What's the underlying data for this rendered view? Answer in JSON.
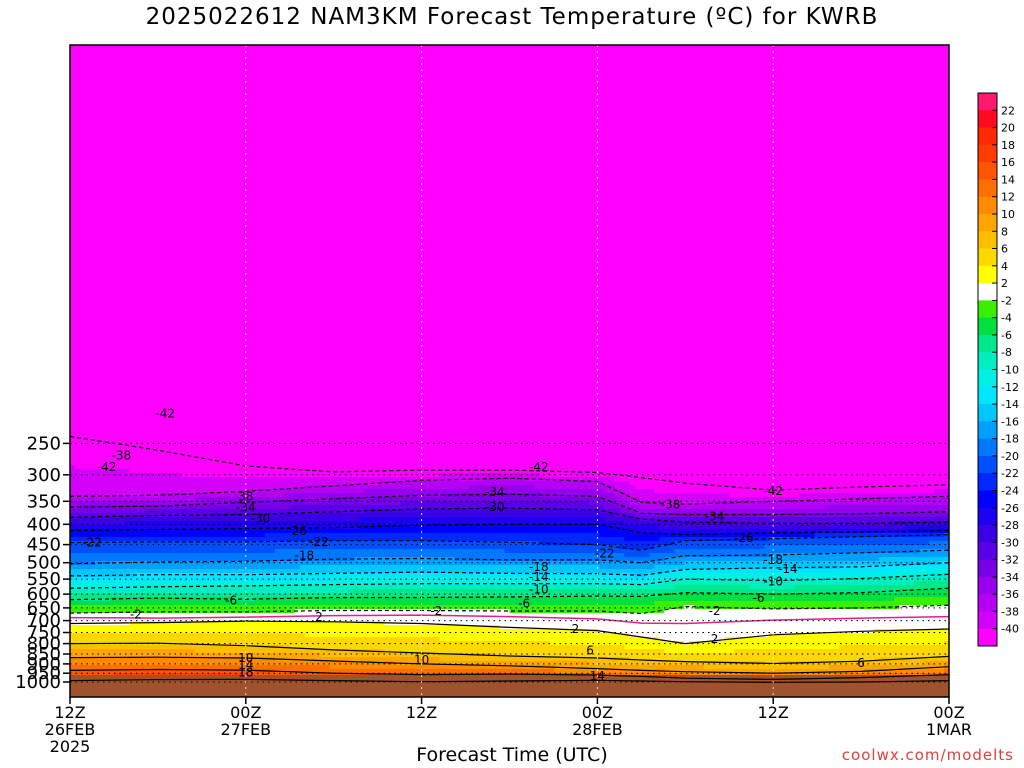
{
  "page": {
    "title": "2025022612 NAM3KM Forecast Temperature (ºC) for KWRB",
    "xlabel": "Forecast Time (UTC)",
    "credit": "coolwx.com/modelts"
  },
  "chart_data": {
    "type": "heatmap",
    "title": "2025022612 NAM3KM Forecast Temperature (ºC) for KWRB",
    "xlabel": "Forecast Time (UTC)",
    "ylabel": "",
    "x_ticks": [
      {
        "hour": 0,
        "lines": [
          "12Z",
          "26FEB",
          "2025"
        ]
      },
      {
        "hour": 12,
        "lines": [
          "00Z",
          "27FEB"
        ]
      },
      {
        "hour": 24,
        "lines": [
          "12Z"
        ]
      },
      {
        "hour": 36,
        "lines": [
          "00Z",
          "28FEB"
        ]
      },
      {
        "hour": 48,
        "lines": [
          "12Z"
        ]
      },
      {
        "hour": 60,
        "lines": [
          "00Z",
          "1MAR"
        ]
      }
    ],
    "xlim_hours": [
      0,
      60
    ],
    "y_ticks_hpa": [
      250,
      300,
      350,
      400,
      450,
      500,
      550,
      600,
      650,
      700,
      750,
      800,
      850,
      900,
      950,
      1000
    ],
    "ylim_hpa": [
      200,
      1050
    ],
    "y_scale": "log-pressure",
    "grid": true,
    "surface_fill_color": "#a0522d",
    "colorbar": {
      "ticks": [
        22,
        20,
        18,
        16,
        14,
        12,
        10,
        8,
        6,
        4,
        2,
        -2,
        -4,
        -6,
        -8,
        -10,
        -12,
        -14,
        -16,
        -18,
        -20,
        -22,
        -24,
        -26,
        -28,
        -30,
        -32,
        -34,
        -36,
        -38,
        -40
      ],
      "bands": [
        {
          "from": 22,
          "to": 24,
          "color": "#ff1a6e"
        },
        {
          "from": 20,
          "to": 22,
          "color": "#ff0a1e"
        },
        {
          "from": 18,
          "to": 20,
          "color": "#ff2a00"
        },
        {
          "from": 16,
          "to": 18,
          "color": "#ff3c00"
        },
        {
          "from": 14,
          "to": 16,
          "color": "#ff5500"
        },
        {
          "from": 12,
          "to": 14,
          "color": "#ff6e00"
        },
        {
          "from": 10,
          "to": 12,
          "color": "#ff8c00"
        },
        {
          "from": 8,
          "to": 10,
          "color": "#ffa500"
        },
        {
          "from": 6,
          "to": 8,
          "color": "#ffbf00"
        },
        {
          "from": 4,
          "to": 6,
          "color": "#ffd800"
        },
        {
          "from": 2,
          "to": 4,
          "color": "#ffff00"
        },
        {
          "from": -2,
          "to": 2,
          "color": "#ffffff"
        },
        {
          "from": -4,
          "to": -2,
          "color": "#38f000"
        },
        {
          "from": -6,
          "to": -4,
          "color": "#00e040"
        },
        {
          "from": -8,
          "to": -6,
          "color": "#00e88c"
        },
        {
          "from": -10,
          "to": -8,
          "color": "#00eec0"
        },
        {
          "from": -12,
          "to": -10,
          "color": "#00f0e6"
        },
        {
          "from": -14,
          "to": -12,
          "color": "#00e6ff"
        },
        {
          "from": -16,
          "to": -14,
          "color": "#00c8ff"
        },
        {
          "from": -18,
          "to": -16,
          "color": "#00a0ff"
        },
        {
          "from": -20,
          "to": -18,
          "color": "#0078ff"
        },
        {
          "from": -22,
          "to": -20,
          "color": "#0050ff"
        },
        {
          "from": -24,
          "to": -22,
          "color": "#0028ff"
        },
        {
          "from": -26,
          "to": -24,
          "color": "#0000ff"
        },
        {
          "from": -28,
          "to": -26,
          "color": "#1e00f0"
        },
        {
          "from": -30,
          "to": -28,
          "color": "#3c00e6"
        },
        {
          "from": -32,
          "to": -30,
          "color": "#5a00e6"
        },
        {
          "from": -34,
          "to": -32,
          "color": "#7800e6"
        },
        {
          "from": -36,
          "to": -34,
          "color": "#9600ee"
        },
        {
          "from": -38,
          "to": -36,
          "color": "#b400f5"
        },
        {
          "from": -40,
          "to": -38,
          "color": "#d200fa"
        },
        {
          "from": -42,
          "to": -40,
          "color": "#ff00ff"
        }
      ]
    },
    "profile_control_times_hours": [
      0,
      6,
      12,
      18,
      24,
      30,
      36,
      39,
      42,
      48,
      54,
      60
    ],
    "isotherm_levels_hpa": [
      {
        "temp": 18,
        "p": [
          992,
          986,
          985,
          992,
          998,
          994,
          990,
          994,
          998,
          1002,
          1000,
          992
        ]
      },
      {
        "temp": 14,
        "p": [
          935,
          930,
          934,
          950,
          958,
          955,
          960,
          968,
          978,
          985,
          975,
          958
        ]
      },
      {
        "temp": 10,
        "p": [
          868,
          866,
          870,
          885,
          900,
          910,
          925,
          935,
          942,
          950,
          940,
          915
        ]
      },
      {
        "temp": 6,
        "p": [
          800,
          798,
          810,
          830,
          845,
          860,
          870,
          880,
          888,
          898,
          886,
          862
        ]
      },
      {
        "temp": 2,
        "p": [
          712,
          708,
          702,
          705,
          712,
          728,
          742,
          770,
          800,
          760,
          745,
          735
        ]
      },
      {
        "temp": 0,
        "p": [
          688,
          690,
          686,
          680,
          678,
          684,
          693,
          710,
          712,
          698,
          690,
          684
        ]
      },
      {
        "temp": -2,
        "p": [
          670,
          665,
          665,
          660,
          660,
          662,
          662,
          672,
          645,
          654,
          650,
          640
        ]
      },
      {
        "temp": -6,
        "p": [
          620,
          614,
          618,
          612,
          612,
          610,
          607,
          608,
          595,
          600,
          595,
          580
        ]
      },
      {
        "temp": -10,
        "p": [
          580,
          575,
          572,
          568,
          565,
          565,
          565,
          568,
          550,
          555,
          548,
          535
        ]
      },
      {
        "temp": -14,
        "p": [
          540,
          536,
          536,
          532,
          528,
          532,
          533,
          538,
          520,
          515,
          512,
          500
        ]
      },
      {
        "temp": -18,
        "p": [
          503,
          498,
          496,
          490,
          488,
          492,
          492,
          500,
          480,
          478,
          472,
          465
        ]
      },
      {
        "temp": -22,
        "p": [
          445,
          443,
          443,
          440,
          440,
          444,
          450,
          465,
          440,
          435,
          430,
          425
        ]
      },
      {
        "temp": -26,
        "p": [
          415,
          412,
          410,
          408,
          402,
          400,
          400,
          420,
          425,
          420,
          418,
          415
        ]
      },
      {
        "temp": -30,
        "p": [
          384,
          380,
          378,
          372,
          366,
          364,
          368,
          388,
          395,
          398,
          398,
          395
        ]
      },
      {
        "temp": -34,
        "p": [
          362,
          360,
          352,
          345,
          338,
          336,
          340,
          375,
          378,
          378,
          376,
          372
        ]
      },
      {
        "temp": -38,
        "p": [
          340,
          338,
          330,
          320,
          310,
          306,
          312,
          352,
          356,
          350,
          345,
          340
        ]
      },
      {
        "temp": -42,
        "p": [
          240,
          260,
          285,
          295,
          292,
          292,
          296,
          305,
          315,
          328,
          322,
          318
        ]
      }
    ],
    "contour_labels": [
      {
        "text": "-42",
        "hour": 6.5,
        "hpa": 210
      },
      {
        "text": "-38",
        "hour": 3.5,
        "hpa": 268
      },
      {
        "text": "-42",
        "hour": 2.5,
        "hpa": 287
      },
      {
        "text": "-42",
        "hour": 32,
        "hpa": 287
      },
      {
        "text": "-42",
        "hour": 48,
        "hpa": 330
      },
      {
        "text": "38",
        "hour": 12,
        "hpa": 340
      },
      {
        "text": "-34",
        "hour": 29,
        "hpa": 332
      },
      {
        "text": "-38",
        "hour": 41,
        "hpa": 357
      },
      {
        "text": "-34",
        "hour": 12,
        "hpa": 363
      },
      {
        "text": "-30",
        "hour": 29,
        "hpa": 362
      },
      {
        "text": "-34",
        "hour": 44,
        "hpa": 382
      },
      {
        "text": "-30",
        "hour": 13,
        "hpa": 387
      },
      {
        "text": "-26",
        "hour": 15.5,
        "hpa": 416
      },
      {
        "text": "-26",
        "hour": 46,
        "hpa": 433
      },
      {
        "text": "-22",
        "hour": 1.5,
        "hpa": 445
      },
      {
        "text": "-22",
        "hour": 17,
        "hpa": 443
      },
      {
        "text": "-22",
        "hour": 36.5,
        "hpa": 474
      },
      {
        "text": "-18",
        "hour": 16,
        "hpa": 480
      },
      {
        "text": "-18",
        "hour": 48,
        "hpa": 492
      },
      {
        "text": "-18",
        "hour": 32,
        "hpa": 512
      },
      {
        "text": "-14",
        "hour": 49,
        "hpa": 518
      },
      {
        "text": "-14",
        "hour": 32,
        "hpa": 543
      },
      {
        "text": "-10",
        "hour": 48,
        "hpa": 557
      },
      {
        "text": "-10",
        "hour": 32,
        "hpa": 585
      },
      {
        "text": "-6",
        "hour": 11,
        "hpa": 622
      },
      {
        "text": "-6",
        "hour": 47,
        "hpa": 614
      },
      {
        "text": "-6",
        "hour": 31,
        "hpa": 633
      },
      {
        "text": "-2",
        "hour": 4.5,
        "hpa": 676
      },
      {
        "text": "-2",
        "hour": 25,
        "hpa": 662
      },
      {
        "text": "-2",
        "hour": 44,
        "hpa": 662
      },
      {
        "text": "2",
        "hour": 17,
        "hpa": 685
      },
      {
        "text": "2",
        "hour": 34.5,
        "hpa": 735
      },
      {
        "text": "2",
        "hour": 44,
        "hpa": 780
      },
      {
        "text": "6",
        "hour": 35.5,
        "hpa": 832
      },
      {
        "text": "10",
        "hour": 12,
        "hpa": 870
      },
      {
        "text": "10",
        "hour": 24,
        "hpa": 880
      },
      {
        "text": "6",
        "hour": 54,
        "hpa": 896
      },
      {
        "text": "14",
        "hour": 12,
        "hpa": 905
      },
      {
        "text": "18",
        "hour": 12,
        "hpa": 945
      },
      {
        "text": "14",
        "hour": 36,
        "hpa": 967
      }
    ]
  }
}
